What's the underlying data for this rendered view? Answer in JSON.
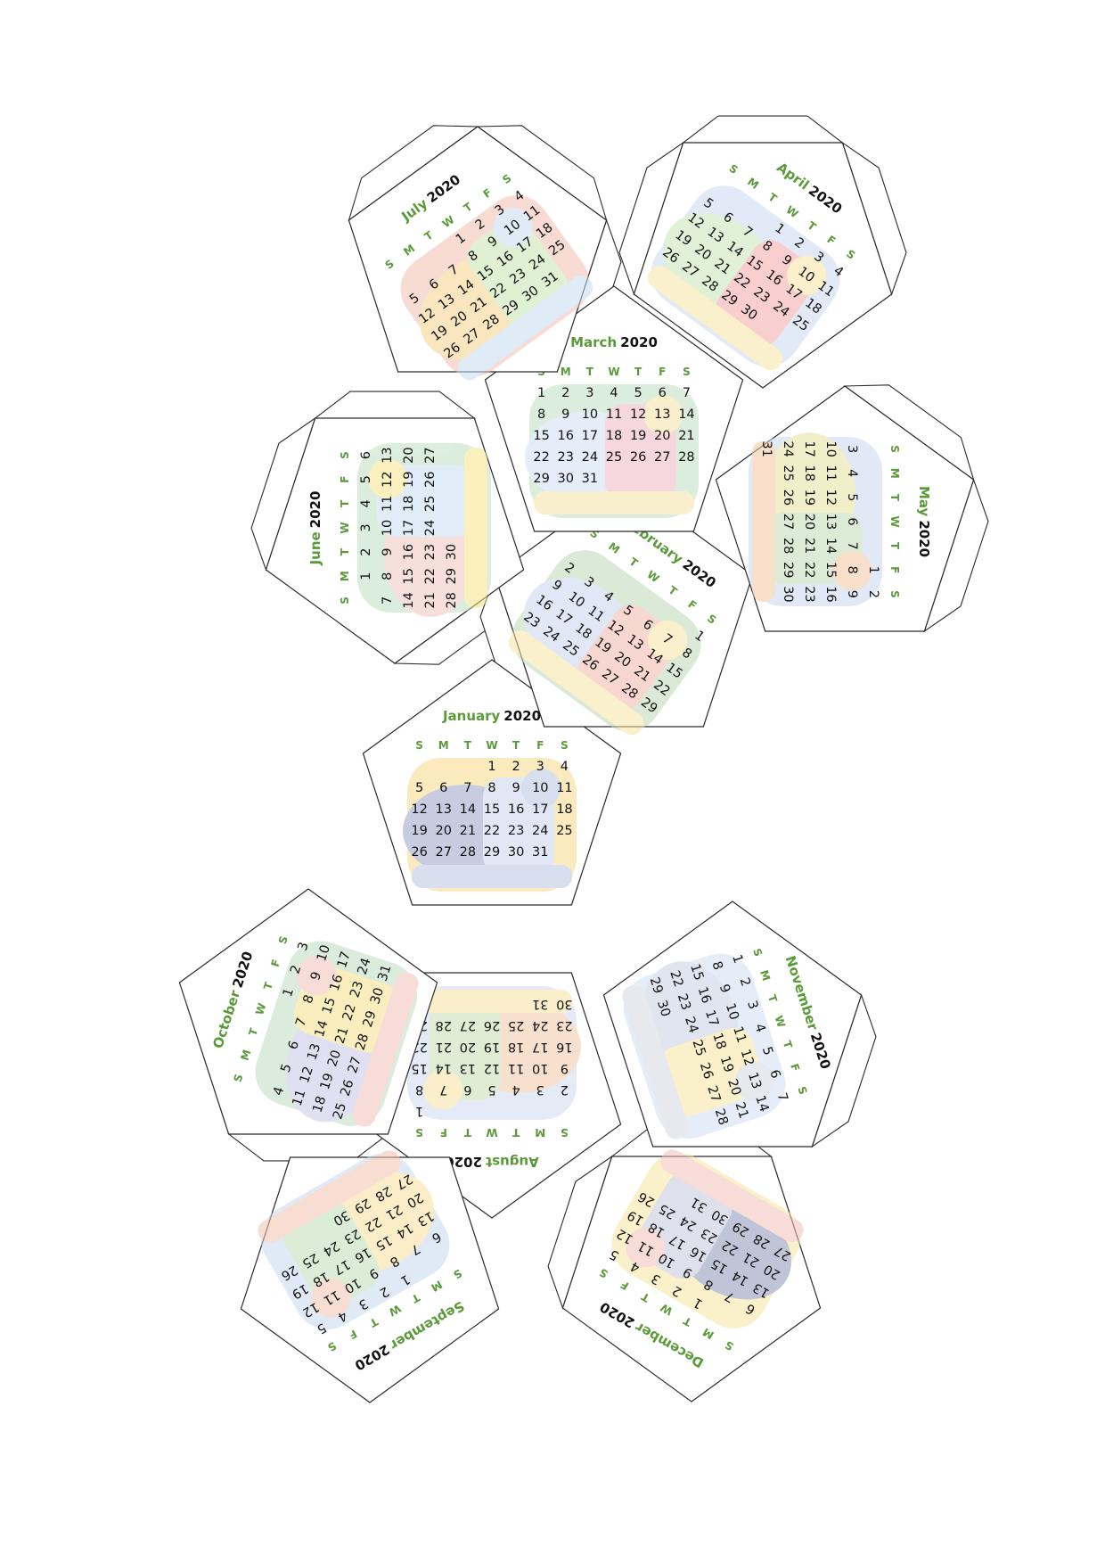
{
  "year": "2020",
  "weekday_letters": [
    "S",
    "M",
    "T",
    "W",
    "T",
    "F",
    "S"
  ],
  "colors": {
    "month_title": "#5b9a3a",
    "year_title": "#111111",
    "weekday_letters": "#5b9a3a",
    "day_numbers": "#111111",
    "sunday_numbers": "#1a1a8c",
    "outline": "#2a2a2a",
    "fold_line": "#777777"
  },
  "faces": [
    {
      "month": "January",
      "first_weekday": 3,
      "days": 31,
      "art": [
        "#9aa4c8",
        "#c9d4ee",
        "#f6d98a",
        "#b8c4e0"
      ]
    },
    {
      "month": "February",
      "first_weekday": 6,
      "days": 29,
      "art": [
        "#c8d6ef",
        "#f2b8a8",
        "#bcd9b6",
        "#f6e4a2"
      ]
    },
    {
      "month": "March",
      "first_weekday": 0,
      "days": 31,
      "art": [
        "#cfe0f3",
        "#f0b8c2",
        "#bfe0c0",
        "#f6e3a6"
      ]
    },
    {
      "month": "April",
      "first_weekday": 3,
      "days": 30,
      "art": [
        "#c8e6b8",
        "#f4a7a7",
        "#c9d9f0",
        "#f6e4a2"
      ]
    },
    {
      "month": "May",
      "first_weekday": 5,
      "days": 31,
      "art": [
        "#e6e2a0",
        "#bfdcb4",
        "#c8d8ee",
        "#f4c6a0"
      ]
    },
    {
      "month": "June",
      "first_weekday": 1,
      "days": 30,
      "art": [
        "#f2c8c0",
        "#c8e0f4",
        "#bfe0c0",
        "#f6e48a"
      ]
    },
    {
      "month": "July",
      "first_weekday": 3,
      "days": 31,
      "art": [
        "#f6d28a",
        "#c8e6b0",
        "#f4c0b0",
        "#c6dcf2"
      ]
    },
    {
      "month": "August",
      "first_weekday": 6,
      "days": 31,
      "art": [
        "#f4c8a8",
        "#c8e0b4",
        "#cfdcf0",
        "#f6e2a0"
      ]
    },
    {
      "month": "September",
      "first_weekday": 2,
      "days": 30,
      "art": [
        "#f6df9a",
        "#bfe0b8",
        "#c8d8f0",
        "#f4c2b0"
      ]
    },
    {
      "month": "October",
      "first_weekday": 4,
      "days": 31,
      "art": [
        "#c6c8e6",
        "#f6e08a",
        "#bfdcc0",
        "#f2c0b8"
      ]
    },
    {
      "month": "November",
      "first_weekday": 0,
      "days": 30,
      "art": [
        "#c8d0e4",
        "#f6e6a0",
        "#cfe0f3",
        "#d4d8e2"
      ]
    },
    {
      "month": "December",
      "first_weekday": 2,
      "days": 31,
      "art": [
        "#8e94b8",
        "#c4c8de",
        "#f6e6a0",
        "#f2c0b8"
      ]
    }
  ]
}
